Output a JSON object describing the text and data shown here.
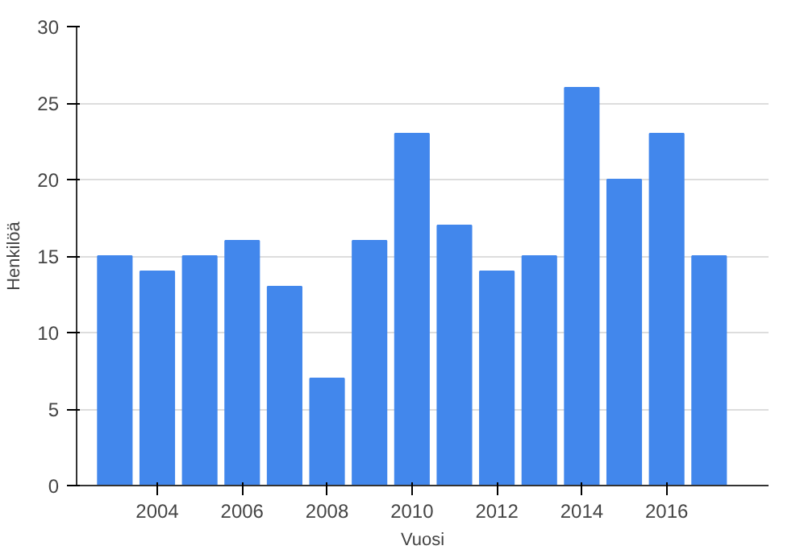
{
  "chart_data": {
    "type": "bar",
    "xlabel": "Vuosi",
    "ylabel": "Henkilöä",
    "x": [
      2003,
      2004,
      2005,
      2006,
      2007,
      2008,
      2009,
      2010,
      2011,
      2012,
      2013,
      2014,
      2015,
      2016,
      2017
    ],
    "values": [
      15,
      14,
      15,
      16,
      13,
      7,
      16,
      23,
      17,
      14,
      15,
      26,
      20,
      23,
      15
    ],
    "color": "#4287ec",
    "xlim": [
      2002.1,
      2018.4
    ],
    "xticks": [
      2004,
      2006,
      2008,
      2010,
      2012,
      2014,
      2016
    ],
    "ylim": [
      0,
      30
    ],
    "yticks": [
      0,
      5,
      10,
      15,
      20,
      25,
      30
    ],
    "grid": "y"
  }
}
